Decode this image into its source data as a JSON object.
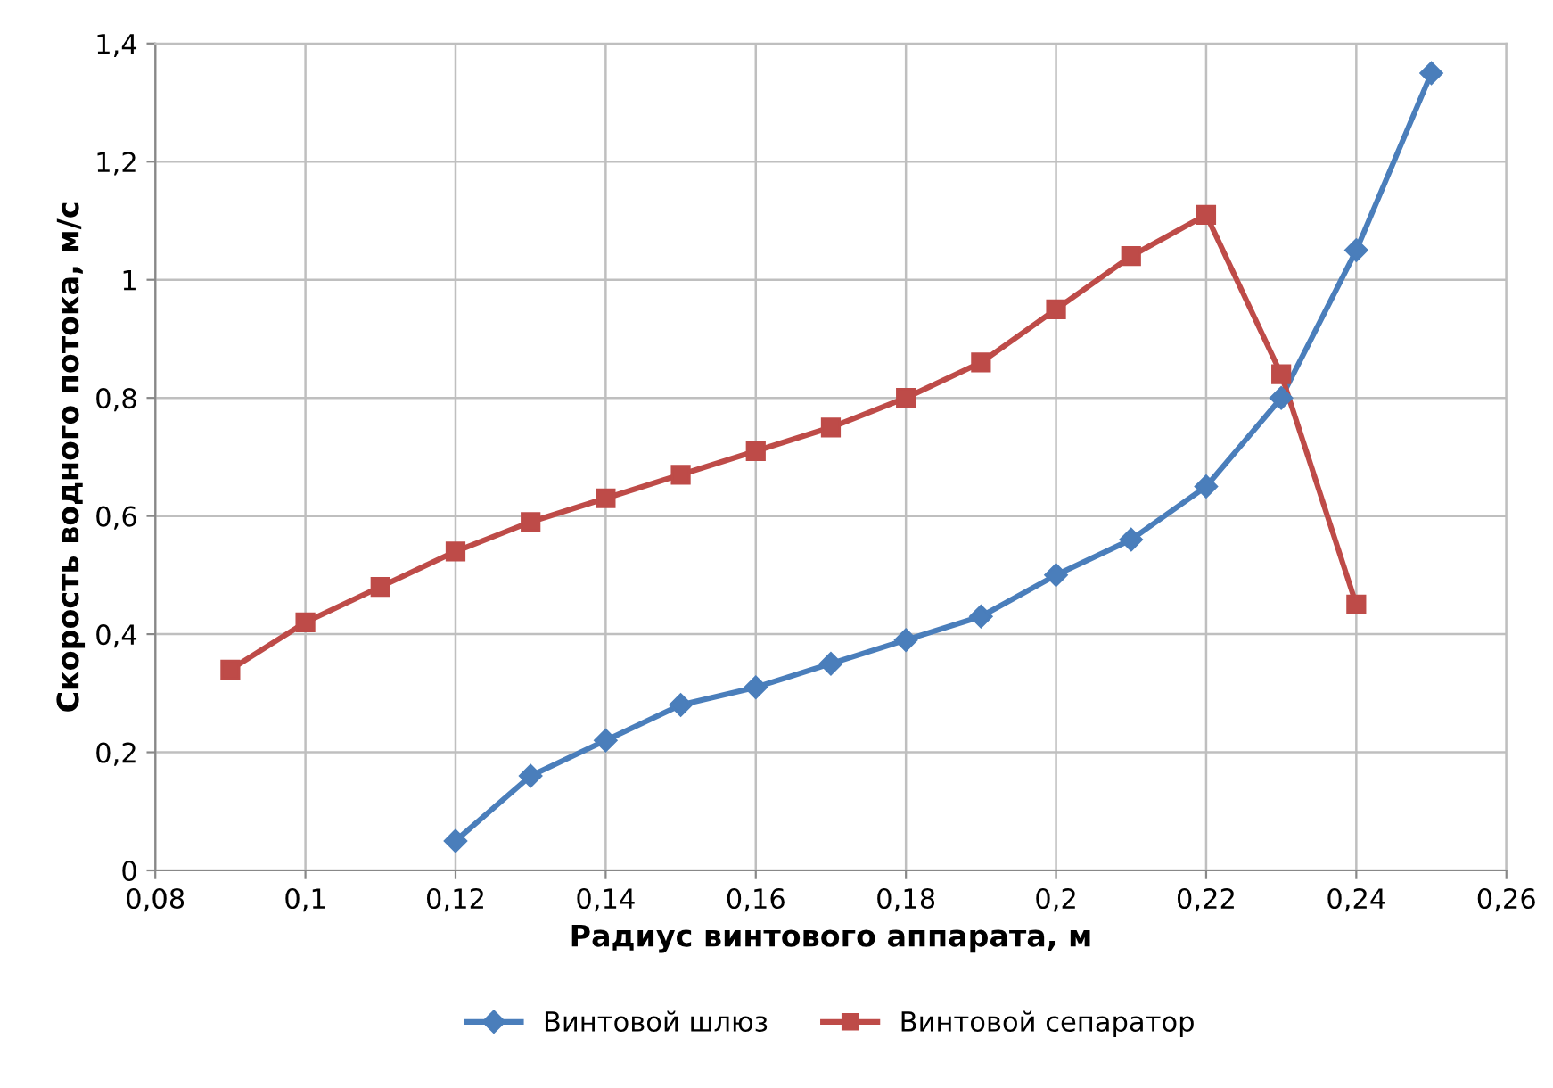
{
  "chart_data": {
    "type": "line",
    "xlabel": "Радиус винтового аппарата, м",
    "ylabel": "Скорость водного потока, м/с",
    "series": [
      {
        "name": "Винтовой шлюз",
        "color": "#4a7ebb",
        "marker": "diamond",
        "x": [
          0.12,
          0.13,
          0.14,
          0.15,
          0.16,
          0.17,
          0.18,
          0.19,
          0.2,
          0.21,
          0.22,
          0.23,
          0.24,
          0.25
        ],
        "values": [
          0.05,
          0.16,
          0.22,
          0.28,
          0.31,
          0.35,
          0.39,
          0.43,
          0.5,
          0.56,
          0.65,
          0.8,
          1.05,
          1.35
        ]
      },
      {
        "name": "Винтовой сепаратор",
        "color": "#be4b48",
        "marker": "square",
        "x": [
          0.09,
          0.1,
          0.11,
          0.12,
          0.13,
          0.14,
          0.15,
          0.16,
          0.17,
          0.18,
          0.19,
          0.2,
          0.21,
          0.22,
          0.23,
          0.24
        ],
        "values": [
          0.34,
          0.42,
          0.48,
          0.54,
          0.59,
          0.63,
          0.67,
          0.71,
          0.75,
          0.8,
          0.86,
          0.95,
          1.04,
          1.11,
          0.84,
          0.45
        ]
      }
    ],
    "xlim": [
      0.08,
      0.26
    ],
    "xticks": [
      {
        "value": 0.08,
        "label": "0,08"
      },
      {
        "value": 0.1,
        "label": "0,1"
      },
      {
        "value": 0.12,
        "label": "0,12"
      },
      {
        "value": 0.14,
        "label": "0,14"
      },
      {
        "value": 0.16,
        "label": "0,16"
      },
      {
        "value": 0.18,
        "label": "0,18"
      },
      {
        "value": 0.2,
        "label": "0,2"
      },
      {
        "value": 0.22,
        "label": "0,22"
      },
      {
        "value": 0.24,
        "label": "0,24"
      },
      {
        "value": 0.26,
        "label": "0,26"
      }
    ],
    "ylim": [
      0,
      1.4
    ],
    "yticks": [
      0,
      {
        "value": 0.2,
        "label": "0,2"
      },
      {
        "value": 0.4,
        "label": "0,4"
      },
      {
        "value": 0.6,
        "label": "0,6"
      },
      {
        "value": 0.8,
        "label": "0,8"
      },
      1,
      {
        "value": 1.2,
        "label": "1,2"
      },
      {
        "value": 1.4,
        "label": "1,4"
      }
    ],
    "grid": true,
    "legend": "bottom",
    "line_style": "solid"
  }
}
